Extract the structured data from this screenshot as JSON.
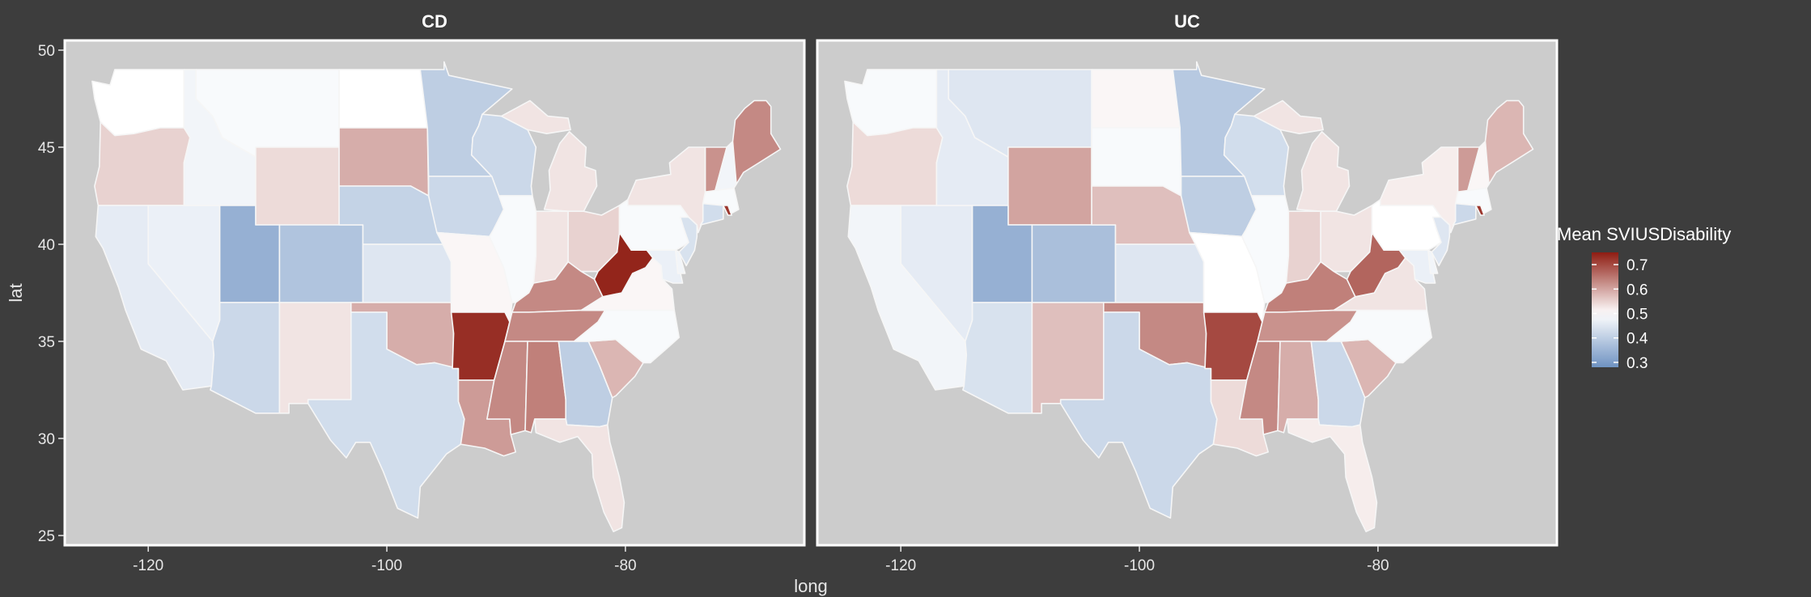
{
  "chart_data": {
    "type": "choropleth",
    "panels": [
      {
        "title": "CD",
        "values": {
          "WA": 0.5,
          "OR": 0.55,
          "CA": 0.46,
          "NV": 0.47,
          "ID": 0.48,
          "MT": 0.49,
          "WY": 0.54,
          "UT": 0.34,
          "CO": 0.38,
          "AZ": 0.42,
          "NM": 0.53,
          "ND": 0.5,
          "SD": 0.59,
          "NE": 0.41,
          "KS": 0.45,
          "OK": 0.59,
          "TX": 0.43,
          "MN": 0.4,
          "IA": 0.42,
          "MO": 0.51,
          "AR": 0.73,
          "LA": 0.61,
          "WI": 0.42,
          "IL": 0.49,
          "MI": 0.53,
          "IN": 0.53,
          "OH": 0.55,
          "KY": 0.63,
          "TN": 0.63,
          "MS": 0.63,
          "AL": 0.64,
          "GA": 0.4,
          "FL": 0.53,
          "SC": 0.58,
          "NC": 0.49,
          "VA": 0.51,
          "WV": 0.74,
          "PA": 0.49,
          "NY": 0.53,
          "VT": 0.62,
          "NH": 0.48,
          "ME": 0.63,
          "MA": 0.49,
          "CT": 0.43,
          "RI": 0.72,
          "NJ": 0.44,
          "DE": 0.48,
          "MD": 0.47
        }
      },
      {
        "title": "UC",
        "values": {
          "WA": 0.49,
          "OR": 0.54,
          "CA": 0.48,
          "NV": 0.46,
          "ID": 0.46,
          "MT": 0.45,
          "WY": 0.6,
          "UT": 0.34,
          "CO": 0.37,
          "AZ": 0.44,
          "NM": 0.57,
          "ND": 0.51,
          "SD": 0.49,
          "NE": 0.57,
          "KS": 0.45,
          "OK": 0.63,
          "TX": 0.42,
          "MN": 0.39,
          "IA": 0.4,
          "MO": 0.5,
          "AR": 0.7,
          "LA": 0.54,
          "WI": 0.43,
          "IL": 0.49,
          "MI": 0.53,
          "IN": 0.55,
          "OH": 0.53,
          "KY": 0.64,
          "TN": 0.62,
          "MS": 0.63,
          "AL": 0.59,
          "GA": 0.42,
          "FL": 0.52,
          "SC": 0.58,
          "NC": 0.49,
          "VA": 0.53,
          "WV": 0.67,
          "PA": 0.5,
          "NY": 0.52,
          "VT": 0.61,
          "NH": 0.51,
          "ME": 0.58,
          "MA": 0.49,
          "CT": 0.42,
          "RI": 0.72,
          "NJ": 0.45,
          "DE": 0.48,
          "MD": 0.47
        }
      }
    ],
    "xlabel": "long",
    "ylabel": "lat",
    "xlim": [
      -127,
      -65
    ],
    "ylim": [
      24.5,
      50.5
    ],
    "x_ticks": [
      -120,
      -100,
      -80
    ],
    "y_ticks": [
      25,
      30,
      35,
      40,
      45,
      50
    ],
    "legend": {
      "title": "Mean SVIUSDisability",
      "placement": "right",
      "breaks": [
        0.7,
        0.6,
        0.5,
        0.4,
        0.3
      ],
      "range": [
        0.28,
        0.75
      ],
      "colors": {
        "low": "#6f93c2",
        "mid": "#ffffff",
        "high": "#8e1c12"
      },
      "midpoint": 0.5
    },
    "grid": false
  }
}
